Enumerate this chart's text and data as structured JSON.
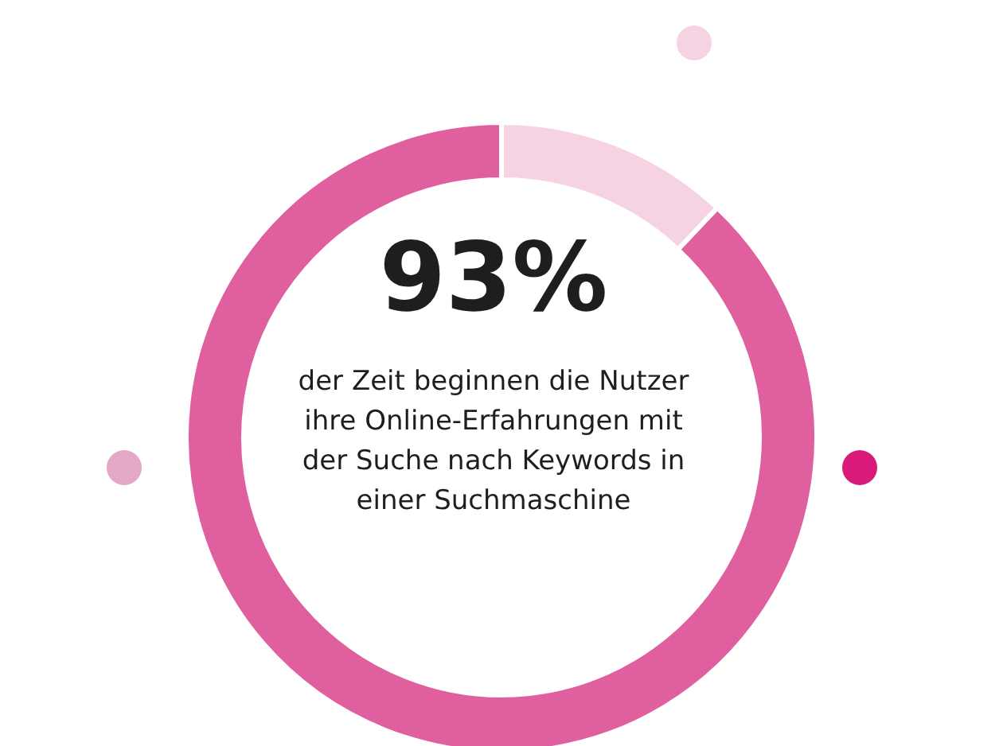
{
  "chart_data": {
    "type": "donut",
    "title": "93%",
    "annotations": [
      "der Zeit beginnen die Nutzer ihre Online-Erfahrungen mit der Suche nach Keywords in einer Suchmaschine"
    ],
    "categories": [
      null,
      null
    ],
    "values": [
      12,
      88
    ],
    "colors": [
      "#f6d3e3",
      "#e0609f"
    ]
  }
}
